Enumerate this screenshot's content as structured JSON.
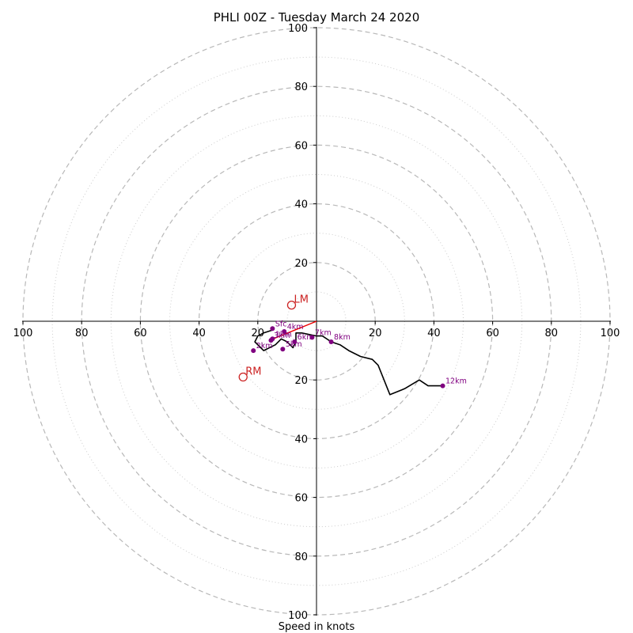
{
  "chart_data": {
    "type": "hodograph",
    "title": "PHLI 00Z - Tuesday March 24 2020",
    "xlabel": "Speed in knots",
    "xlim": [
      -100,
      100
    ],
    "ylim": [
      -100,
      100
    ],
    "ring_major": [
      20,
      40,
      60,
      80,
      100
    ],
    "ring_minor": [
      10,
      30,
      50,
      70,
      90
    ],
    "tick_labels_x": [
      "100",
      "80",
      "60",
      "40",
      "20",
      "20",
      "40",
      "60",
      "80",
      "100"
    ],
    "tick_values_x": [
      -100,
      -80,
      -60,
      -40,
      -20,
      20,
      40,
      60,
      80,
      100
    ],
    "tick_labels_y": [
      "100",
      "80",
      "60",
      "40",
      "20",
      "20",
      "40",
      "60",
      "80",
      "100"
    ],
    "tick_values_y": [
      100,
      80,
      60,
      40,
      20,
      -20,
      -40,
      -60,
      -80,
      -100
    ],
    "grid": true,
    "trace": {
      "color": "#000000",
      "u": [
        -15,
        -18,
        -20,
        -21,
        -18,
        -14,
        -12,
        -10,
        -8,
        -7,
        -7,
        -5,
        0,
        2,
        5,
        8,
        11,
        15,
        19,
        21,
        25,
        30,
        35,
        38,
        43
      ],
      "v": [
        -3,
        -4,
        -5,
        -7,
        -10,
        -8,
        -6,
        -7,
        -9,
        -7,
        -4,
        -4,
        -5,
        -5,
        -7,
        -8,
        -10,
        -12,
        -13,
        -15,
        -25,
        -23,
        -20,
        -22,
        -22
      ]
    },
    "height_markers": {
      "color": "#800080",
      "points": [
        {
          "label": "Sfc",
          "u": -15,
          "v": -2.5
        },
        {
          "label": "1km",
          "u": -15,
          "v": -6
        },
        {
          "label": "2km",
          "u": -21.5,
          "v": -10
        },
        {
          "label": "3km",
          "u": -15.5,
          "v": -6.5
        },
        {
          "label": "4km",
          "u": -11,
          "v": -3.5
        },
        {
          "label": "5km",
          "u": -11.5,
          "v": -9.5
        },
        {
          "label": "6km",
          "u": -7.5,
          "v": -7
        },
        {
          "label": "7km",
          "u": -1.5,
          "v": -5.5
        },
        {
          "label": "8km",
          "u": 5,
          "v": -7
        },
        {
          "label": "12km",
          "u": 43,
          "v": -22
        }
      ]
    },
    "shear_vector": {
      "color": "#ee0000",
      "u0": -16,
      "v0": -6.5,
      "u1": 0,
      "v1": 0
    },
    "storm_motion": {
      "color": "#cc2222",
      "points": [
        {
          "label": "LM",
          "u": -8.5,
          "v": 5.5
        },
        {
          "label": "RM",
          "u": -25,
          "v": -19
        }
      ]
    }
  }
}
